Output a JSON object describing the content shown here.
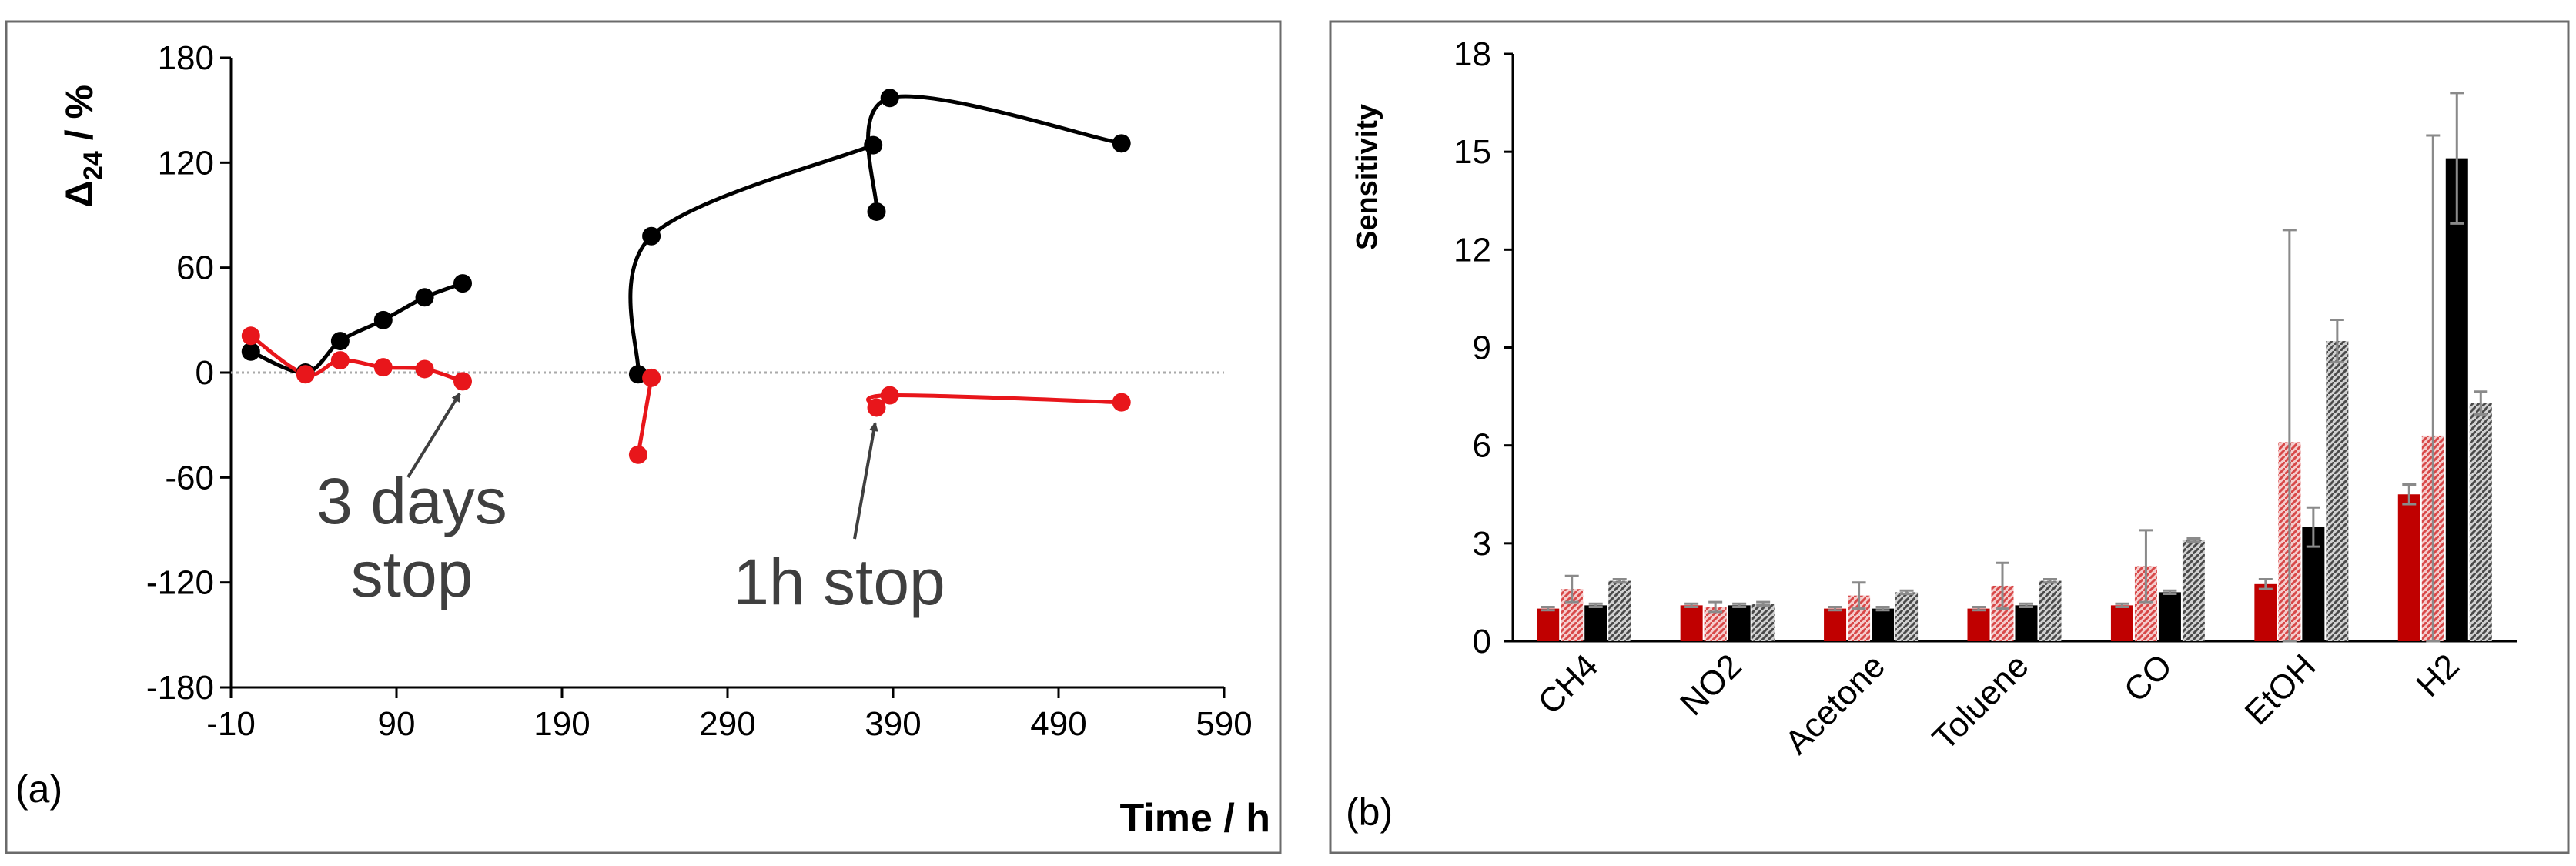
{
  "chart_data": [
    {
      "panel": "a",
      "type": "line",
      "panel_label": "(a)",
      "xlabel": "Time / h",
      "ylabel_main": "Δ",
      "ylabel_sub": "24",
      "ylabel_rest": " / %",
      "xlim": [
        -10,
        590
      ],
      "ylim": [
        -180,
        180
      ],
      "xticks": [
        -10,
        90,
        190,
        290,
        390,
        490,
        590
      ],
      "yticks": [
        -180,
        -120,
        -60,
        0,
        60,
        120,
        180
      ],
      "zero_line": true,
      "series": [
        {
          "name": "black-run1",
          "color": "#000000",
          "x": [
            2,
            35,
            56,
            82,
            107,
            130
          ],
          "y": [
            12,
            0,
            18,
            30,
            43,
            51
          ]
        },
        {
          "name": "red-run1",
          "color": "#e8161b",
          "x": [
            2,
            35,
            56,
            82,
            107,
            130
          ],
          "y": [
            21,
            -1,
            7,
            3,
            2,
            -5
          ]
        },
        {
          "name": "black-run2-seg1",
          "color": "#000000",
          "x": [
            236,
            244,
            378
          ],
          "y": [
            -1,
            78,
            130
          ]
        },
        {
          "name": "black-run2-seg2",
          "color": "#000000",
          "x": [
            380,
            388,
            528
          ],
          "y": [
            92,
            157,
            131
          ]
        },
        {
          "name": "red-run2-seg1",
          "color": "#e8161b",
          "x": [
            236,
            244
          ],
          "y": [
            -47,
            -3
          ]
        },
        {
          "name": "red-run2-seg2",
          "color": "#e8161b",
          "x": [
            380,
            388,
            528
          ],
          "y": [
            -20,
            -13,
            -17
          ]
        }
      ],
      "annotations": [
        {
          "lines": [
            "3 days",
            "stop"
          ],
          "arrow_to": [
            130,
            -5
          ]
        },
        {
          "lines": [
            "1h stop"
          ],
          "arrow_to": [
            381,
            -22
          ]
        }
      ]
    },
    {
      "panel": "b",
      "type": "bar",
      "panel_label": "(b)",
      "ylabel": "Sensitivity",
      "ylim": [
        0,
        18
      ],
      "yticks": [
        0,
        3,
        6,
        9,
        12,
        15,
        18
      ],
      "categories": [
        "CH4",
        "NO2",
        "Acetone",
        "Toluene",
        "CO",
        "EtOH",
        "H2"
      ],
      "series": [
        {
          "name": "red-solid",
          "color": "#c00000",
          "pattern": "solid",
          "values": [
            1.0,
            1.1,
            1.0,
            1.0,
            1.1,
            1.75,
            4.5
          ],
          "errors": [
            0.05,
            0.05,
            0.05,
            0.05,
            0.05,
            0.15,
            0.3
          ]
        },
        {
          "name": "red-hatched",
          "color": "#e8a0a0",
          "pattern": "hatched",
          "values": [
            1.6,
            1.05,
            1.4,
            1.7,
            2.3,
            6.1,
            6.3
          ],
          "errors": [
            0.4,
            0.15,
            0.4,
            0.7,
            1.1,
            6.5,
            9.2
          ]
        },
        {
          "name": "black-solid",
          "color": "#000000",
          "pattern": "solid",
          "values": [
            1.1,
            1.1,
            1.0,
            1.1,
            1.5,
            3.5,
            14.8
          ],
          "errors": [
            0.05,
            0.05,
            0.05,
            0.05,
            0.05,
            0.6,
            2.0
          ]
        },
        {
          "name": "gray-hatched",
          "color": "#8c8c8c",
          "pattern": "hatched",
          "values": [
            1.85,
            1.15,
            1.5,
            1.85,
            3.1,
            9.2,
            7.3
          ],
          "errors": [
            0.05,
            0.05,
            0.05,
            0.05,
            0.05,
            0.65,
            0.35
          ]
        }
      ]
    }
  ]
}
